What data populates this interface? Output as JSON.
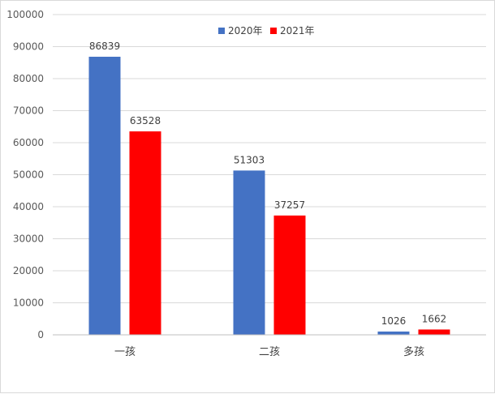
{
  "chart_data": {
    "type": "bar",
    "categories": [
      "一孩",
      "二孩",
      "多孩"
    ],
    "series": [
      {
        "name": "2020年",
        "color": "#4472C4",
        "values": [
          86839,
          51303,
          1026
        ]
      },
      {
        "name": "2021年",
        "color": "#FF0000",
        "values": [
          63528,
          37257,
          1662
        ]
      }
    ],
    "ylim": [
      0,
      100000
    ],
    "yticks": [
      0,
      10000,
      20000,
      30000,
      40000,
      50000,
      60000,
      70000,
      80000,
      90000,
      100000
    ],
    "grid": true,
    "legend_position": "top-center",
    "data_labels": true
  }
}
